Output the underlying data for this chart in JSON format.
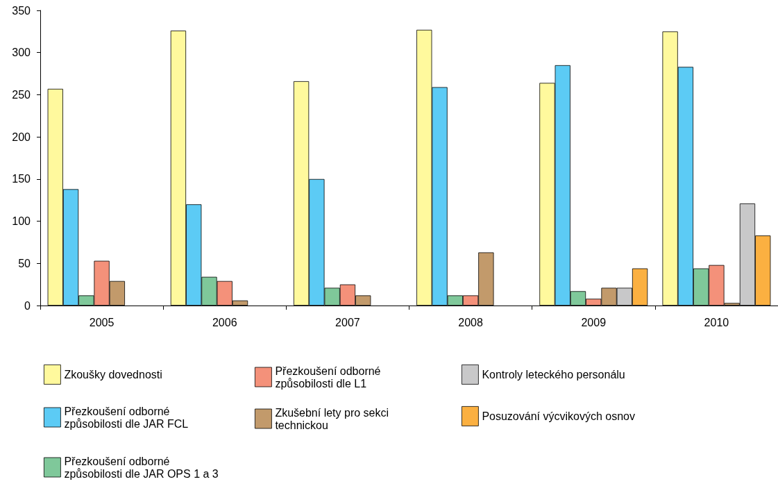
{
  "chart_data": {
    "type": "bar",
    "categories": [
      "2005",
      "2006",
      "2007",
      "2008",
      "2009",
      "2010"
    ],
    "series": [
      {
        "name": "Zkoušky dovednosti",
        "color": "#fff99d",
        "values": [
          257,
          326,
          266,
          327,
          264,
          325
        ]
      },
      {
        "name": "Přezkoušení odborné způsobilosti dle JAR FCL",
        "color": "#5ccbf5",
        "values": [
          138,
          120,
          150,
          259,
          285,
          283
        ]
      },
      {
        "name": "Přezkoušení odborné způsobilosti dle JAR OPS 1 a 3",
        "color": "#7fc89a",
        "values": [
          12,
          34,
          21,
          12,
          17,
          44
        ]
      },
      {
        "name": "Přezkoušení odborné způsobilosti dle L1",
        "color": "#f4917a",
        "values": [
          53,
          29,
          25,
          12,
          8,
          48
        ]
      },
      {
        "name": "Zkušební lety pro sekci technickou",
        "color": "#c29a6b",
        "values": [
          29,
          6,
          12,
          63,
          21,
          3
        ]
      },
      {
        "name": "Kontroly leteckého personálu",
        "color": "#c8c8c9",
        "values": [
          null,
          null,
          null,
          null,
          21,
          121
        ]
      },
      {
        "name": "Posuzování výcvikových osnov",
        "color": "#fbb041",
        "values": [
          null,
          null,
          null,
          null,
          44,
          83
        ]
      }
    ],
    "ylim": [
      0,
      350
    ],
    "yticks": [
      0,
      50,
      100,
      150,
      200,
      250,
      300,
      350
    ],
    "grid": false,
    "legend": "bottom"
  }
}
